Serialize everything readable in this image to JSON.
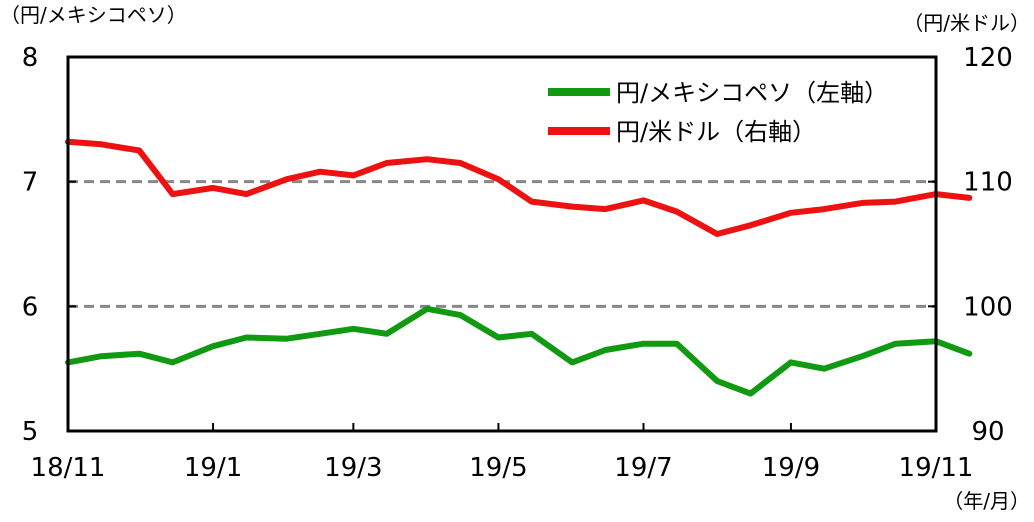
{
  "chart_data": {
    "type": "line",
    "left_unit": "（円/メキシコペソ）",
    "right_unit": "（円/米ドル）",
    "x_unit": "（年/月）",
    "x_ticks": [
      "18/11",
      "19/1",
      "19/3",
      "19/5",
      "19/7",
      "19/9",
      "19/11"
    ],
    "y_left": {
      "range": [
        5,
        8
      ],
      "ticks": [
        "5",
        "6",
        "7",
        "8"
      ]
    },
    "y_right": {
      "range": [
        90,
        120
      ],
      "ticks": [
        "90",
        "100",
        "110",
        "120"
      ]
    },
    "gridlines_left": [
      6,
      7
    ],
    "legend_placement": "top-right",
    "colors": {
      "mxn": "#119a11",
      "usd": "#ee1111",
      "grid": "#888888"
    },
    "series": [
      {
        "name": "円/メキシコペソ（左軸）",
        "axis": "left",
        "x": [
          "18/11/01",
          "18/11/15",
          "18/12/01",
          "18/12/15",
          "19/01/01",
          "19/01/15",
          "19/02/01",
          "19/02/15",
          "19/03/01",
          "19/03/15",
          "19/04/01",
          "19/04/15",
          "19/05/01",
          "19/05/15",
          "19/06/01",
          "19/06/15",
          "19/07/01",
          "19/07/15",
          "19/08/01",
          "19/08/15",
          "19/09/01",
          "19/09/15",
          "19/10/01",
          "19/10/15",
          "19/11/01",
          "19/11/15"
        ],
        "values": [
          5.55,
          5.6,
          5.62,
          5.55,
          5.68,
          5.75,
          5.74,
          5.78,
          5.82,
          5.78,
          5.98,
          5.93,
          5.75,
          5.78,
          5.55,
          5.65,
          5.7,
          5.7,
          5.4,
          5.3,
          5.55,
          5.5,
          5.6,
          5.7,
          5.72,
          5.62
        ]
      },
      {
        "name": "円/米ドル（右軸）",
        "axis": "right",
        "x": [
          "18/11/01",
          "18/11/15",
          "18/12/01",
          "18/12/15",
          "19/01/01",
          "19/01/15",
          "19/02/01",
          "19/02/15",
          "19/03/01",
          "19/03/15",
          "19/04/01",
          "19/04/15",
          "19/05/01",
          "19/05/15",
          "19/06/01",
          "19/06/15",
          "19/07/01",
          "19/07/15",
          "19/08/01",
          "19/08/15",
          "19/09/01",
          "19/09/15",
          "19/10/01",
          "19/10/15",
          "19/11/01",
          "19/11/15"
        ],
        "values": [
          113.2,
          113.0,
          112.5,
          109.0,
          109.5,
          109.0,
          110.2,
          110.8,
          110.5,
          111.5,
          111.8,
          111.5,
          110.2,
          108.4,
          108.0,
          107.8,
          108.5,
          107.6,
          105.8,
          106.5,
          107.5,
          107.8,
          108.3,
          108.4,
          109.0,
          108.7
        ]
      }
    ]
  }
}
